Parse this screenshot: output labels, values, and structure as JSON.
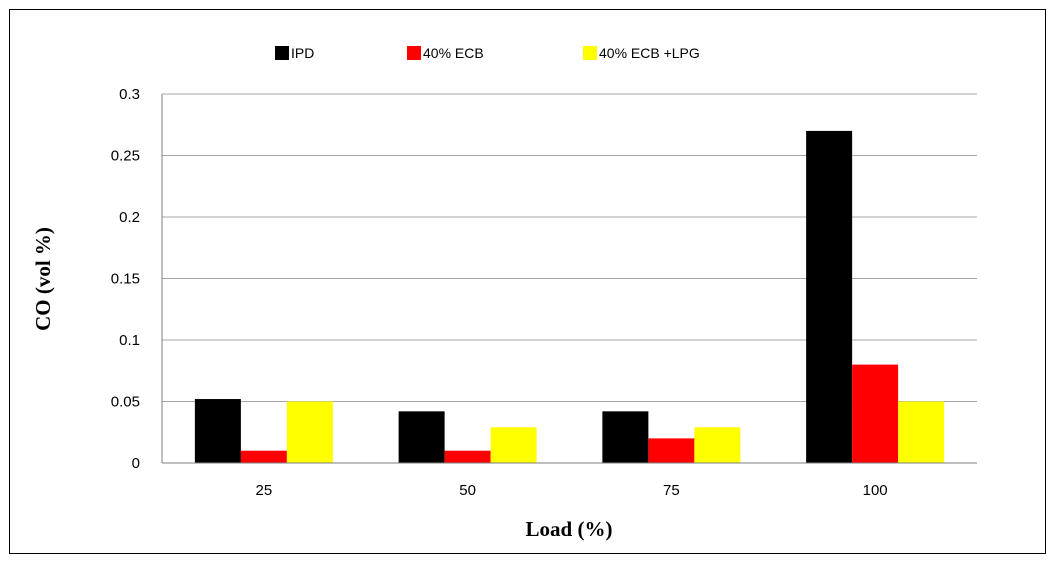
{
  "chart_data": {
    "type": "bar",
    "categories": [
      "25",
      "50",
      "75",
      "100"
    ],
    "series": [
      {
        "name": "IPD",
        "color": "#000000",
        "values": [
          0.052,
          0.042,
          0.042,
          0.27
        ]
      },
      {
        "name": "40% ECB",
        "color": "#ff0000",
        "values": [
          0.01,
          0.01,
          0.02,
          0.08
        ]
      },
      {
        "name": "40% ECB +LPG",
        "color": "#ffff00",
        "values": [
          0.05,
          0.029,
          0.029,
          0.05
        ]
      }
    ],
    "ylabel": "CO (vol %)",
    "xlabel": "Load (%)",
    "ylim": [
      0,
      0.3
    ],
    "yticks": [
      "0",
      "0.05",
      "0.1",
      "0.15",
      "0.2",
      "0.25",
      "0.3"
    ],
    "grid": true,
    "legend_position": "top"
  }
}
